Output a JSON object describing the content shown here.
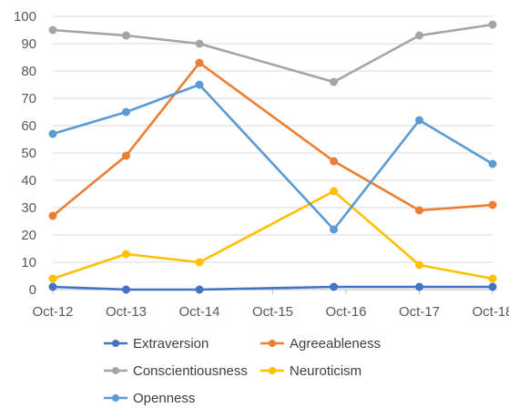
{
  "chart_data": {
    "type": "line",
    "x_ticks": [
      "Oct-12",
      "Oct-13",
      "Oct-14",
      "Oct-15",
      "Oct-16",
      "Oct-17",
      "Oct-18"
    ],
    "x_domain": [
      "2019-10-12",
      "2019-10-18"
    ],
    "y_ticks": [
      0,
      10,
      20,
      30,
      40,
      50,
      60,
      70,
      80,
      90,
      100
    ],
    "ylim": [
      0,
      100
    ],
    "grid": {
      "horizontal": true,
      "vertical": false
    },
    "legend_position": "bottom",
    "title": "",
    "xlabel": "",
    "ylabel": "",
    "series": [
      {
        "name": "Extraversion",
        "color": "#4472c4",
        "points": [
          {
            "x": "2019-10-12 00:00",
            "y": 1
          },
          {
            "x": "2019-10-13 00:00",
            "y": 0
          },
          {
            "x": "2019-10-14 00:00",
            "y": 0
          },
          {
            "x": "2019-10-15 20:00",
            "y": 1
          },
          {
            "x": "2019-10-17 00:00",
            "y": 1
          },
          {
            "x": "2019-10-18 00:00",
            "y": 1
          }
        ]
      },
      {
        "name": "Agreeableness",
        "color": "#ed7d31",
        "points": [
          {
            "x": "2019-10-12 00:00",
            "y": 27
          },
          {
            "x": "2019-10-13 00:00",
            "y": 49
          },
          {
            "x": "2019-10-14 00:00",
            "y": 83
          },
          {
            "x": "2019-10-15 20:00",
            "y": 47
          },
          {
            "x": "2019-10-17 00:00",
            "y": 29
          },
          {
            "x": "2019-10-18 00:00",
            "y": 31
          }
        ]
      },
      {
        "name": "Conscientiousness",
        "color": "#a5a5a5",
        "points": [
          {
            "x": "2019-10-12 00:00",
            "y": 95
          },
          {
            "x": "2019-10-13 00:00",
            "y": 93
          },
          {
            "x": "2019-10-14 00:00",
            "y": 90
          },
          {
            "x": "2019-10-15 20:00",
            "y": 76
          },
          {
            "x": "2019-10-17 00:00",
            "y": 93
          },
          {
            "x": "2019-10-18 00:00",
            "y": 97
          }
        ]
      },
      {
        "name": "Neuroticism",
        "color": "#ffc000",
        "points": [
          {
            "x": "2019-10-12 00:00",
            "y": 4
          },
          {
            "x": "2019-10-13 00:00",
            "y": 13
          },
          {
            "x": "2019-10-14 00:00",
            "y": 10
          },
          {
            "x": "2019-10-15 20:00",
            "y": 36
          },
          {
            "x": "2019-10-17 00:00",
            "y": 9
          },
          {
            "x": "2019-10-18 00:00",
            "y": 4
          }
        ]
      },
      {
        "name": "Openness",
        "color": "#5b9bd5",
        "points": [
          {
            "x": "2019-10-12 00:00",
            "y": 57
          },
          {
            "x": "2019-10-13 00:00",
            "y": 65
          },
          {
            "x": "2019-10-14 00:00",
            "y": 75
          },
          {
            "x": "2019-10-15 20:00",
            "y": 22
          },
          {
            "x": "2019-10-17 00:00",
            "y": 62
          },
          {
            "x": "2019-10-18 00:00",
            "y": 46
          }
        ]
      }
    ]
  }
}
